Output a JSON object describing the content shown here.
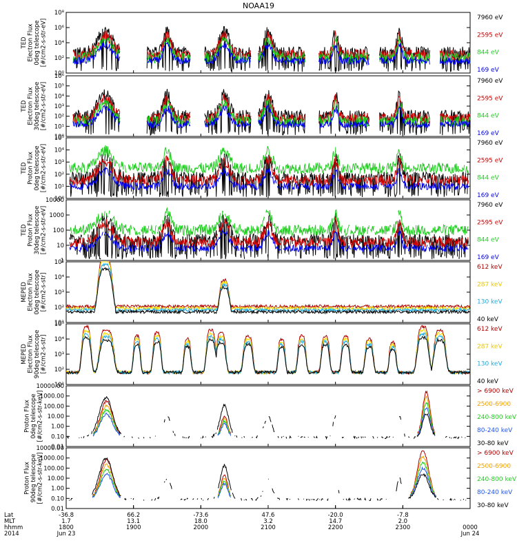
{
  "chart_data": {
    "type": "line",
    "title": "NOAA19",
    "xaxis": {
      "row_labels": [
        "Lat",
        "MLT",
        "hhmm",
        "2014"
      ],
      "ticks": [
        {
          "lat": "-36.8",
          "mlt": "1.7",
          "hhmm": "1800",
          "date": "Jun 23"
        },
        {
          "lat": "66.2",
          "mlt": "13.1",
          "hhmm": "1900",
          "date": ""
        },
        {
          "lat": "-73.6",
          "mlt": "18.0",
          "hhmm": "2000",
          "date": ""
        },
        {
          "lat": "47.6",
          "mlt": "3.2",
          "hhmm": "2100",
          "date": ""
        },
        {
          "lat": "-20.0",
          "mlt": "14.7",
          "hhmm": "2200",
          "date": ""
        },
        {
          "lat": "-7.8",
          "mlt": "2.0",
          "hhmm": "2300",
          "date": ""
        },
        {
          "lat": "",
          "mlt": "",
          "hhmm": "0000",
          "date": "Jun 24"
        }
      ],
      "range_hours": [
        18,
        24
      ]
    },
    "panels": [
      {
        "ylabel": [
          "TED",
          "Electron Flux",
          "0deg telescope",
          "[#/cm2-s-str-eV]"
        ],
        "scale": "log",
        "yticks": [
          "10⁰",
          "10²",
          "10⁴",
          "10⁶",
          "10⁸"
        ],
        "ylim": [
          1,
          100000000
        ],
        "series": [
          {
            "name": "7960 eV",
            "color": "#000000"
          },
          {
            "name": "2595 eV",
            "color": "#cc0000"
          },
          {
            "name": "844 eV",
            "color": "#22cc22"
          },
          {
            "name": "169 eV",
            "color": "#0000ee"
          }
        ]
      },
      {
        "ylabel": [
          "TED",
          "Electron Flux",
          "30deg telescope",
          "[#/cm2-s-str-eV]"
        ],
        "scale": "log",
        "yticks": [
          "10⁰",
          "10¹",
          "10²",
          "10³",
          "10⁴",
          "10⁵",
          "10⁶"
        ],
        "ylim": [
          1,
          1000000
        ],
        "series": [
          {
            "name": "7960 eV",
            "color": "#000000"
          },
          {
            "name": "2595 eV",
            "color": "#cc0000"
          },
          {
            "name": "844 eV",
            "color": "#22cc22"
          },
          {
            "name": "169 eV",
            "color": "#0000ee"
          }
        ]
      },
      {
        "ylabel": [
          "TED",
          "Proton Flux",
          "0deg telescope",
          "[#/cm2-s-str-eV]"
        ],
        "scale": "log",
        "yticks": [
          "10⁰",
          "10¹",
          "10²",
          "10³",
          "10⁴",
          "10⁵"
        ],
        "ylim": [
          1,
          100000
        ],
        "series": [
          {
            "name": "7960 eV",
            "color": "#000000"
          },
          {
            "name": "2595 eV",
            "color": "#cc0000"
          },
          {
            "name": "844 eV",
            "color": "#22cc22"
          },
          {
            "name": "169 eV",
            "color": "#0000ee"
          }
        ]
      },
      {
        "ylabel": [
          "TED",
          "Proton Flux",
          "30deg telescope",
          "[#/cm2-s-str-eV]"
        ],
        "scale": "log",
        "yticks": [
          "1",
          "10",
          "100",
          "1000",
          "10000"
        ],
        "ylim": [
          1,
          10000
        ],
        "series": [
          {
            "name": "7960 eV",
            "color": "#000000"
          },
          {
            "name": "2595 eV",
            "color": "#cc0000"
          },
          {
            "name": "844 eV",
            "color": "#22cc22"
          },
          {
            "name": "169 eV",
            "color": "#0000ee"
          }
        ]
      },
      {
        "ylabel": [
          "MEPED",
          "Electron Flux",
          "0deg telescope",
          "[#/cm2-s-str]"
        ],
        "scale": "log",
        "yticks": [
          "10¹",
          "10²",
          "10³",
          "10⁴",
          "10⁵"
        ],
        "ylim": [
          10,
          100000
        ],
        "series": [
          {
            "name": "612 keV",
            "color": "#b00000"
          },
          {
            "name": "287 keV",
            "color": "#f2d800"
          },
          {
            "name": "130 keV",
            "color": "#22aadd"
          },
          {
            "name": "40 keV",
            "color": "#000000"
          }
        ]
      },
      {
        "ylabel": [
          "MEPED",
          "Electron Flux",
          "90deg telescope",
          "[#/cm2-s-str]"
        ],
        "scale": "log",
        "yticks": [
          "10¹",
          "10²",
          "10³",
          "10⁴",
          "10⁵"
        ],
        "ylim": [
          10,
          100000
        ],
        "series": [
          {
            "name": "612 keV",
            "color": "#b00000"
          },
          {
            "name": "287 keV",
            "color": "#f2d800"
          },
          {
            "name": "130 keV",
            "color": "#22aadd"
          },
          {
            "name": "40 keV",
            "color": "#000000"
          }
        ]
      },
      {
        "ylabel": [
          "Proton Flux",
          "0deg telescope",
          "[#/cm2-s-str-keV]"
        ],
        "scale": "log",
        "yticks": [
          "0.01",
          "0.10",
          "1.00",
          "10.00",
          "100.00",
          "1000.00",
          "10000.00"
        ],
        "ylim": [
          0.01,
          10000
        ],
        "series": [
          {
            "name": "> 6900 keV",
            "color": "#b00000"
          },
          {
            "name": "2500-6900",
            "color": "#f2a000"
          },
          {
            "name": "240-800 keV",
            "color": "#22cc22"
          },
          {
            "name": "80-240 keV",
            "color": "#2255ee"
          },
          {
            "name": "30-80 keV",
            "color": "#000000"
          }
        ]
      },
      {
        "ylabel": [
          "Proton Flux",
          "90deg telescope",
          "[#/cm2-s-str-keV]"
        ],
        "scale": "log",
        "yticks": [
          "0.01",
          "0.10",
          "1.00",
          "10.00",
          "100.00",
          "1000.00",
          "10000.00"
        ],
        "ylim": [
          0.01,
          10000
        ],
        "series": [
          {
            "name": "> 6900 keV",
            "color": "#b00000"
          },
          {
            "name": "2500-6900",
            "color": "#f2a000"
          },
          {
            "name": "240-800 keV",
            "color": "#22cc22"
          },
          {
            "name": "80-240 keV",
            "color": "#2255ee"
          },
          {
            "name": "30-80 keV",
            "color": "#000000"
          }
        ]
      }
    ]
  }
}
